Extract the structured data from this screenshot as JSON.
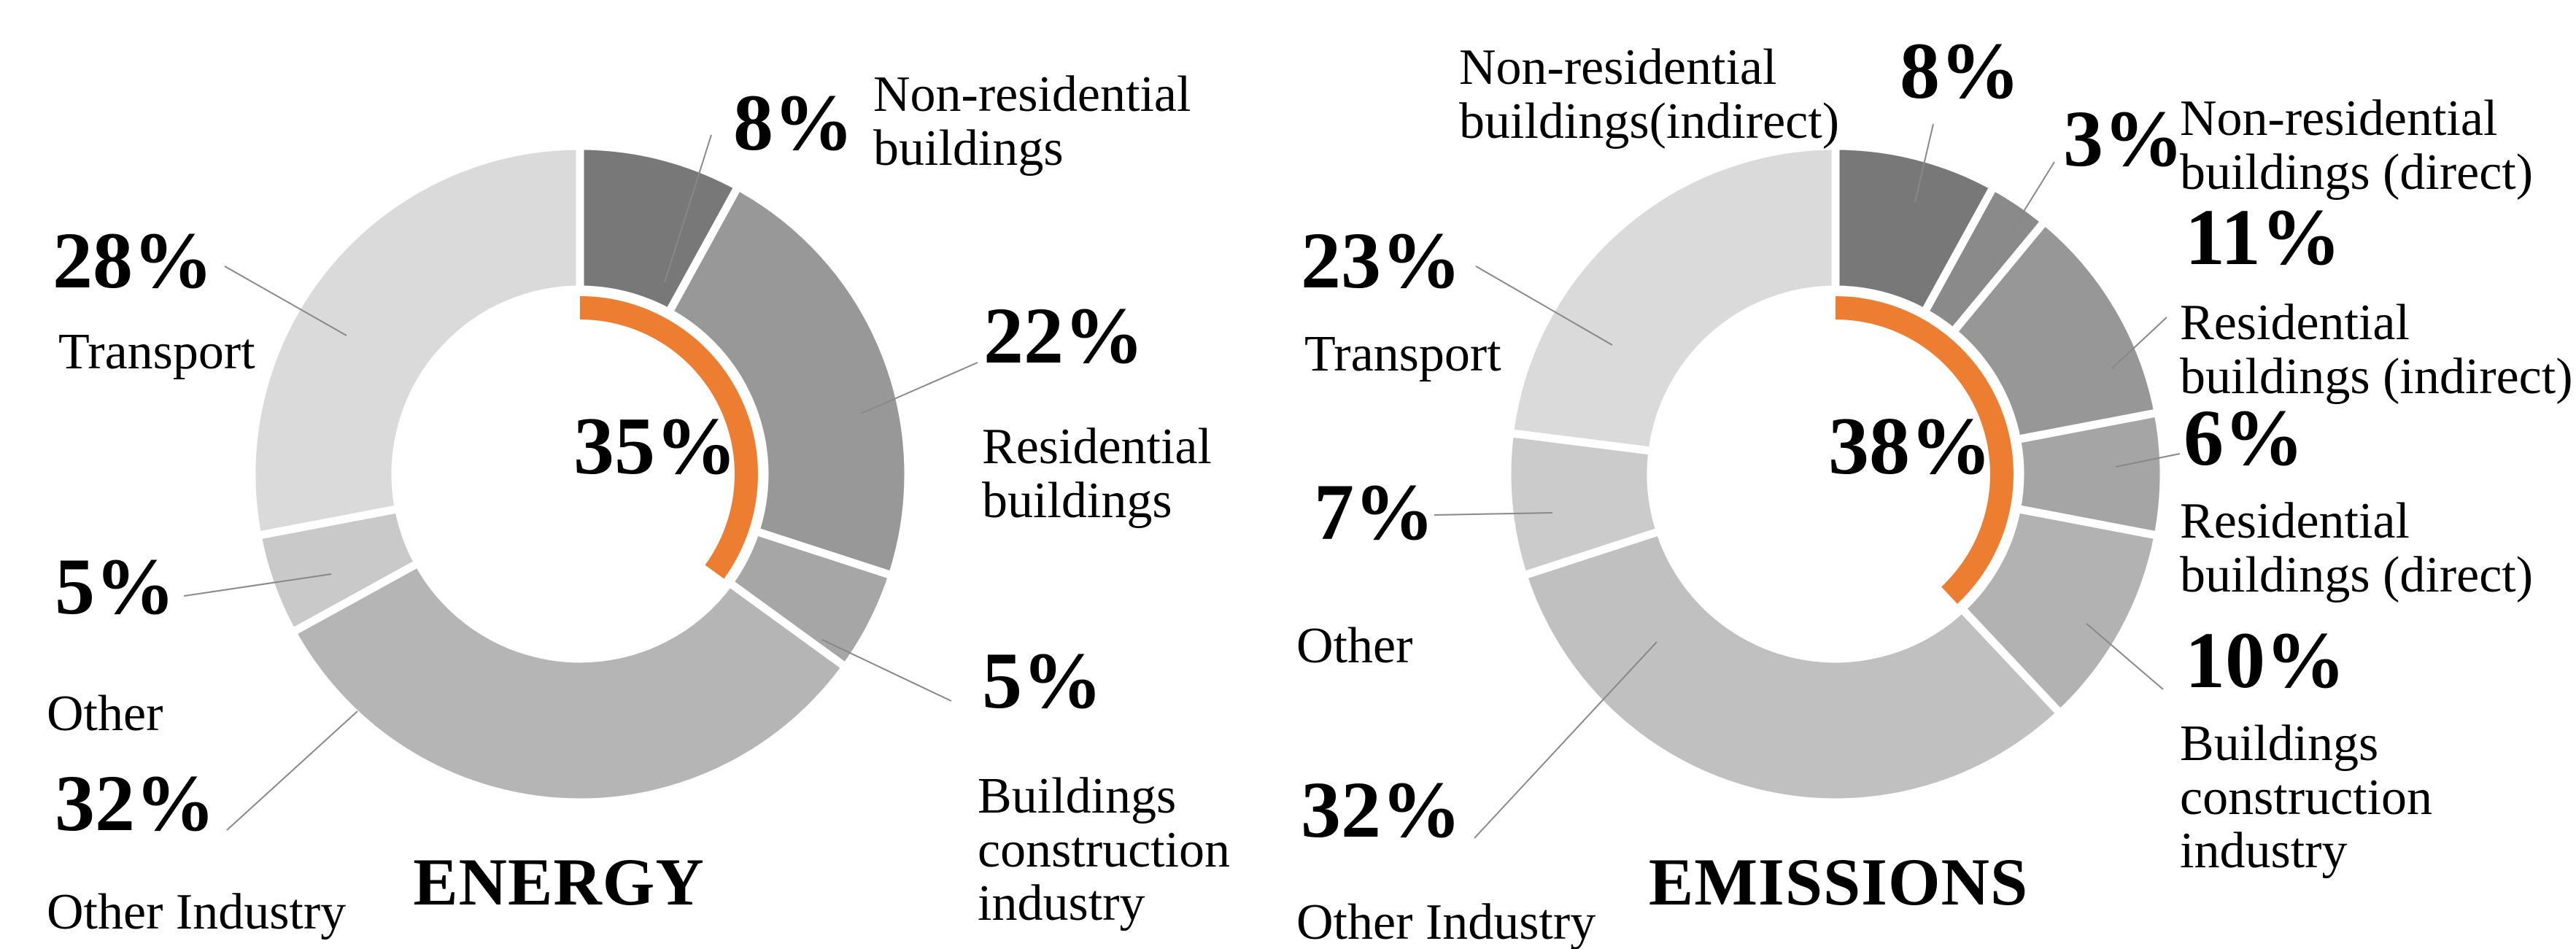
{
  "chart_data": [
    {
      "type": "pie",
      "subtype": "donut",
      "title": "ENERGY",
      "center_label": "35%",
      "highlight": {
        "share_pct": 35,
        "color": "#ED7D31",
        "meaning": "buildings share highlighted by inner arc"
      },
      "start_angle": "12-oclock",
      "direction": "clockwise",
      "labels": [
        "Non-residential buildings",
        "Residential buildings",
        "Buildings construction industry",
        "Other Industry",
        "Other",
        "Transport"
      ],
      "values": [
        8,
        22,
        5,
        32,
        5,
        28
      ],
      "pct_labels": [
        "8%",
        "22%",
        "5%",
        "32%",
        "5%",
        "28%"
      ],
      "label_lines": [
        [
          "Non-residential",
          "buildings"
        ],
        [
          "Residential",
          "buildings"
        ],
        [
          "Buildings",
          "construction",
          "industry"
        ],
        [
          "Other Industry"
        ],
        [
          "Other"
        ],
        [
          "Transport"
        ]
      ],
      "colors": [
        "#787878",
        "#989898",
        "#a6a6a6",
        "#b5b5b5",
        "#c9c9c9",
        "#dadada"
      ]
    },
    {
      "type": "pie",
      "subtype": "donut",
      "title": "EMISSIONS",
      "center_label": "38%",
      "highlight": {
        "share_pct": 38,
        "color": "#ED7D31",
        "meaning": "buildings share highlighted by inner arc"
      },
      "start_angle": "12-oclock",
      "direction": "clockwise",
      "labels": [
        "Non-residential buildings(indirect)",
        "Non-residential buildings (direct)",
        "Residential buildings (indirect)",
        "Residential buildings (direct)",
        "Buildings construction industry",
        "Other Industry",
        "Other",
        "Transport"
      ],
      "values": [
        8,
        3,
        11,
        6,
        10,
        32,
        7,
        23
      ],
      "pct_labels": [
        "8%",
        "3%",
        "11%",
        "6%",
        "10%",
        "32%",
        "7%",
        "23%"
      ],
      "label_lines": [
        [
          "Non-residential",
          "buildings(indirect)"
        ],
        [
          "Non-residential",
          "buildings (direct)"
        ],
        [
          "Residential",
          "buildings (indirect)"
        ],
        [
          "Residential",
          "buildings (direct)"
        ],
        [
          "Buildings",
          "construction",
          "industry"
        ],
        [
          "Other Industry"
        ],
        [
          "Other"
        ],
        [
          "Transport"
        ]
      ],
      "colors": [
        "#787878",
        "#8a8a8a",
        "#979797",
        "#a5a5a5",
        "#b2b2b2",
        "#c0c0c0",
        "#cbcbcb",
        "#dadada"
      ]
    }
  ],
  "leader_line_color": "#888888"
}
